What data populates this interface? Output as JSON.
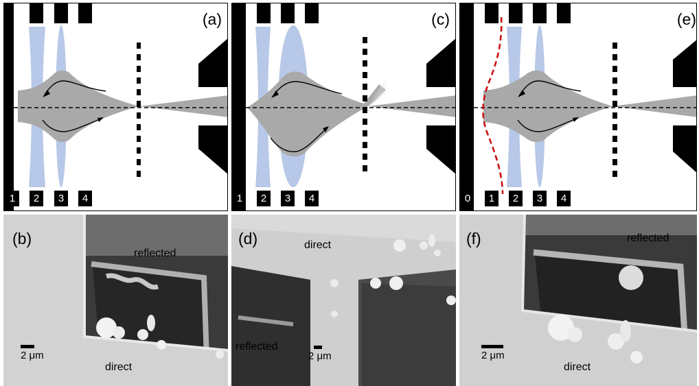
{
  "panels_top": [
    {
      "tag": "(a)",
      "numbers": [
        "1",
        "2",
        "3",
        "4"
      ]
    },
    {
      "tag": "(c)",
      "numbers": [
        "1",
        "2",
        "3",
        "4"
      ]
    },
    {
      "tag": "(e)",
      "numbers": [
        "0",
        "1",
        "2",
        "3",
        "4"
      ]
    }
  ],
  "panels_bottom": [
    {
      "tag": "(b)",
      "labels": [
        "reflected",
        "direct"
      ],
      "scale": "2 μm"
    },
    {
      "tag": "(d)",
      "labels": [
        "direct",
        "reflected"
      ],
      "scale": "2 μm"
    },
    {
      "tag": "(f)",
      "labels": [
        "reflected",
        "direct"
      ],
      "scale": "2 μm"
    }
  ],
  "colors": {
    "lens": "#b7c8e8",
    "beam": "#a9a9a9",
    "wavefront": "#cc1111",
    "electrode": "#000000"
  }
}
